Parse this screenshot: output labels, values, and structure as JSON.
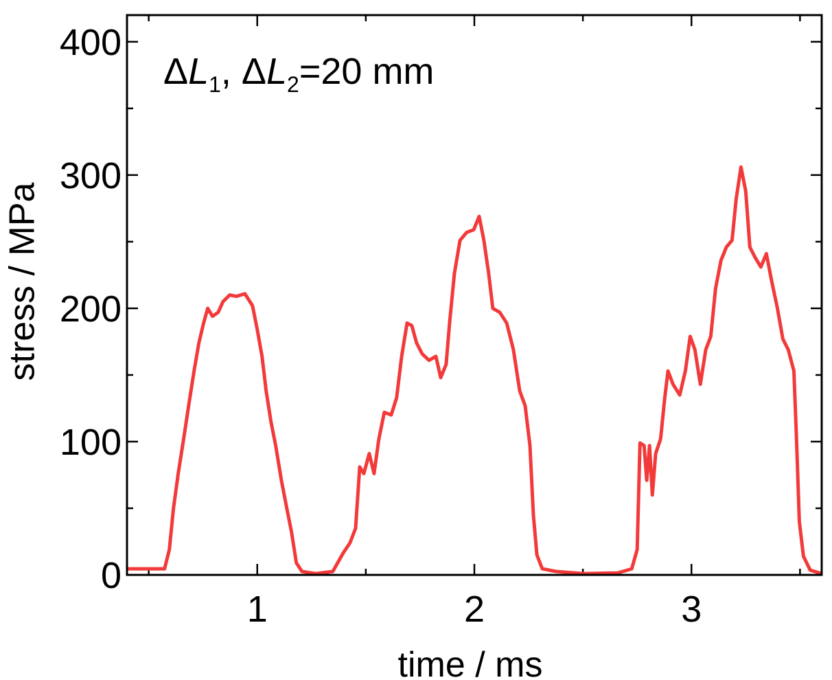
{
  "chart_data": {
    "type": "line",
    "annotation": [
      "Δ",
      "L",
      "1",
      ", Δ",
      "L",
      "2",
      "=20 mm"
    ],
    "xlabel": "time / ms",
    "ylabel": "stress / MPa",
    "xlim": [
      0.4,
      3.6
    ],
    "ylim": [
      0,
      420
    ],
    "xticks": [
      1,
      2,
      3
    ],
    "yticks": [
      0,
      100,
      200,
      300,
      400
    ],
    "xminor": [
      0.5,
      1.5,
      2.5,
      3.5
    ],
    "yminor": [
      50,
      150,
      250,
      350
    ],
    "grid": false,
    "x": [
      0.4,
      0.573,
      0.595,
      0.614,
      0.636,
      0.661,
      0.684,
      0.709,
      0.731,
      0.753,
      0.772,
      0.794,
      0.82,
      0.842,
      0.873,
      0.905,
      0.943,
      0.978,
      1.0,
      1.022,
      1.041,
      1.063,
      1.085,
      1.111,
      1.136,
      1.158,
      1.18,
      1.206,
      1.269,
      1.348,
      1.396,
      1.427,
      1.453,
      1.472,
      1.491,
      1.516,
      1.538,
      1.56,
      1.585,
      1.617,
      1.642,
      1.665,
      1.69,
      1.712,
      1.734,
      1.759,
      1.791,
      1.823,
      1.845,
      1.87,
      1.886,
      1.908,
      1.934,
      1.965,
      1.997,
      2.022,
      2.044,
      2.066,
      2.085,
      2.117,
      2.149,
      2.18,
      2.209,
      2.234,
      2.256,
      2.272,
      2.288,
      2.313,
      2.377,
      2.503,
      2.661,
      2.725,
      2.75,
      2.763,
      2.782,
      2.794,
      2.807,
      2.82,
      2.835,
      2.858,
      2.877,
      2.892,
      2.915,
      2.946,
      2.972,
      2.994,
      3.016,
      3.041,
      3.066,
      3.089,
      3.111,
      3.136,
      3.161,
      3.187,
      3.206,
      3.228,
      3.25,
      3.269,
      3.294,
      3.32,
      3.345,
      3.37,
      3.396,
      3.421,
      3.446,
      3.472,
      3.484,
      3.497,
      3.516,
      3.547,
      3.6
    ],
    "series": [
      {
        "color": "#f23a3a",
        "values": [
          4.6,
          4.6,
          19,
          50,
          76,
          102,
          127,
          153,
          174,
          189,
          200,
          194,
          197,
          205,
          210,
          209,
          211,
          202,
          184,
          164,
          138,
          115,
          97,
          71,
          50,
          32,
          9,
          2.6,
          1,
          2.6,
          16.5,
          24,
          35,
          81,
          76,
          91,
          76,
          102,
          122,
          120,
          133,
          164,
          189,
          187,
          174,
          166,
          161,
          164,
          148,
          158,
          189,
          226,
          251,
          257,
          259,
          269,
          251,
          226,
          200,
          197,
          189,
          169,
          138,
          127,
          97,
          45,
          15,
          4.6,
          2.6,
          1,
          1.5,
          4.6,
          19,
          99,
          97,
          71,
          97,
          60,
          91,
          102,
          133,
          153,
          143,
          135,
          153,
          179,
          169,
          143,
          169,
          179,
          215,
          236,
          246,
          251,
          282,
          306,
          288,
          246,
          238,
          231,
          241,
          220,
          200,
          177,
          169,
          153,
          102,
          40,
          14,
          3.6,
          1
        ]
      }
    ]
  }
}
